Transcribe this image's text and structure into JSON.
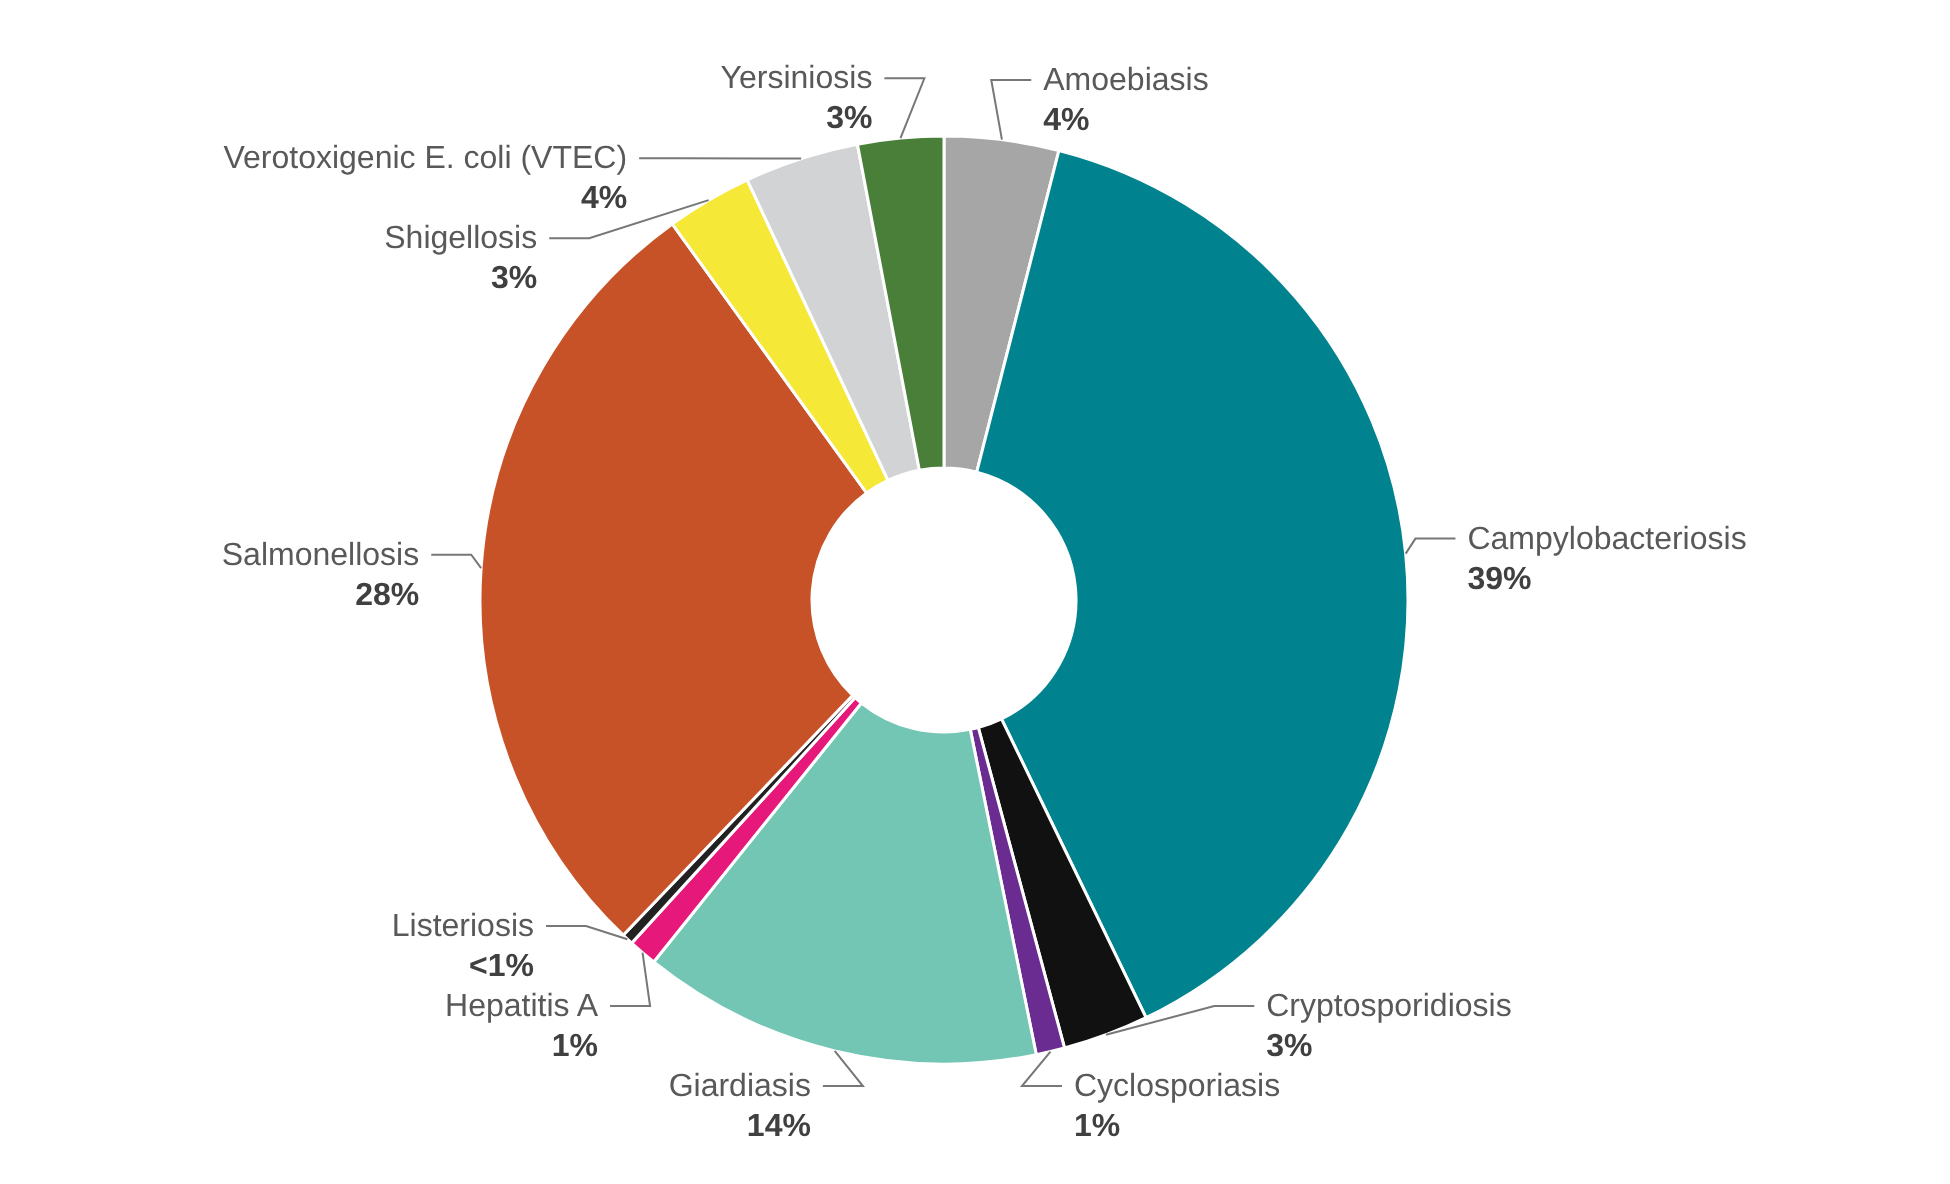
{
  "chart_data": {
    "type": "donut",
    "categories": [
      "Amoebiasis",
      "Campylobacteriosis",
      "Cryptosporidiosis",
      "Cyclosporiasis",
      "Giardiasis",
      "Hepatitis A",
      "Listeriosis",
      "Salmonellosis",
      "Shigellosis",
      "Verotoxigenic E. coli (VTEC)",
      "Yersiniosis"
    ],
    "values": [
      4,
      39,
      3,
      1,
      14,
      1,
      0.4,
      28,
      3,
      4,
      3
    ],
    "colors": [
      "#a6a6a6",
      "#00838f",
      "#111111",
      "#6a2c91",
      "#72c6b3",
      "#e6197a",
      "#222222",
      "#c75228",
      "#f5e837",
      "#d1d3d4",
      "#4a7f3a"
    ],
    "value_labels": [
      "4%",
      "39%",
      "3%",
      "1%",
      "14%",
      "1%",
      "<1%",
      "28%",
      "3%",
      "4%",
      "3%"
    ]
  }
}
